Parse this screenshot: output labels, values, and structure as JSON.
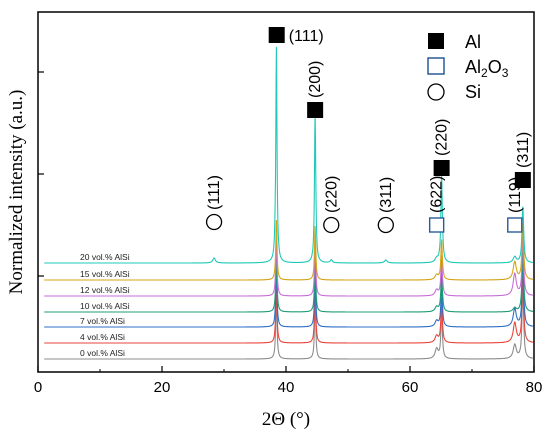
{
  "chart_data": {
    "type": "line",
    "title": "",
    "xlabel": "2Θ (°)",
    "ylabel": "Normalized intensity (a.u.)",
    "xlim": [
      0,
      80
    ],
    "x_ticks": [
      "0",
      "20",
      "40",
      "60",
      "80"
    ],
    "grid": false,
    "legend_position": "top-right",
    "legend": [
      {
        "symbol": "filled-square",
        "label_main": "Al",
        "label_sub": ""
      },
      {
        "symbol": "open-square",
        "label_main": "Al",
        "label_sub": "2",
        "label_main2": "O",
        "label_sub2": "3"
      },
      {
        "symbol": "open-circle",
        "label_main": "Si",
        "label_sub": ""
      }
    ],
    "peak_annotations": [
      {
        "symbol": "open-circle",
        "label": "(111)",
        "x": 28.4
      },
      {
        "symbol": "filled-square",
        "label": "(111)",
        "x": 38.5
      },
      {
        "symbol": "filled-square",
        "label": "(200)",
        "x": 44.7
      },
      {
        "symbol": "open-circle",
        "label": "(220)",
        "x": 47.3
      },
      {
        "symbol": "open-circle",
        "label": "(311)",
        "x": 56.1
      },
      {
        "symbol": "open-square",
        "label": "(622)",
        "x": 64.3
      },
      {
        "symbol": "filled-square",
        "label": "(220)",
        "x": 65.1
      },
      {
        "symbol": "open-square",
        "label": "(119)",
        "x": 76.9
      },
      {
        "symbol": "filled-square",
        "label": "(311)",
        "x": 78.2
      }
    ],
    "series": [
      {
        "name": "0 vol.% AlSi",
        "color": "#8c8c8c"
      },
      {
        "name": "4 vol.% AlSi",
        "color": "#e8463c"
      },
      {
        "name": "7 vol.% AlSi",
        "color": "#2f6fc6"
      },
      {
        "name": "10 vol.% AlSi",
        "color": "#1f9e74"
      },
      {
        "name": "12 vol.% AlSi",
        "color": "#c86fd8"
      },
      {
        "name": "15 vol.% AlSi",
        "color": "#d4a417"
      },
      {
        "name": "20 vol.% AlSi",
        "color": "#1fc9b8"
      }
    ]
  }
}
